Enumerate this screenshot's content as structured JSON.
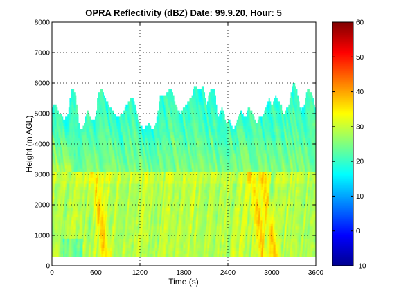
{
  "chart_data": {
    "type": "heatmap",
    "title": "OPRA Reflectivity (dBZ)  Date: 99.9.20, Hour: 5",
    "xlabel": "Time (s)",
    "ylabel": "Height (m AGL)",
    "xlim": [
      0,
      3600
    ],
    "ylim": [
      0,
      8000
    ],
    "xticks": [
      "0",
      "600",
      "1200",
      "1800",
      "2400",
      "3000",
      "3600"
    ],
    "yticks": [
      "0",
      "1000",
      "2000",
      "3000",
      "4000",
      "5000",
      "6000",
      "7000",
      "8000"
    ],
    "grid": true,
    "colorbar": {
      "min": -10,
      "max": 60,
      "ticks": [
        "-10",
        "0",
        "10",
        "20",
        "30",
        "40",
        "50",
        "60"
      ],
      "colormap": "jet",
      "placement": "right"
    },
    "echo_structure": {
      "lowest_height_m": 300,
      "bright_band_top_m": 3100,
      "typical_echo_top_m": 5000,
      "max_echo_top_m": 6400,
      "lower_layer_dbz_range": [
        23,
        38
      ],
      "upper_layer_dbz_range": [
        18,
        28
      ],
      "peak_dbz": 42,
      "strong_streak_times_s": [
        650,
        2800,
        2950
      ]
    }
  }
}
